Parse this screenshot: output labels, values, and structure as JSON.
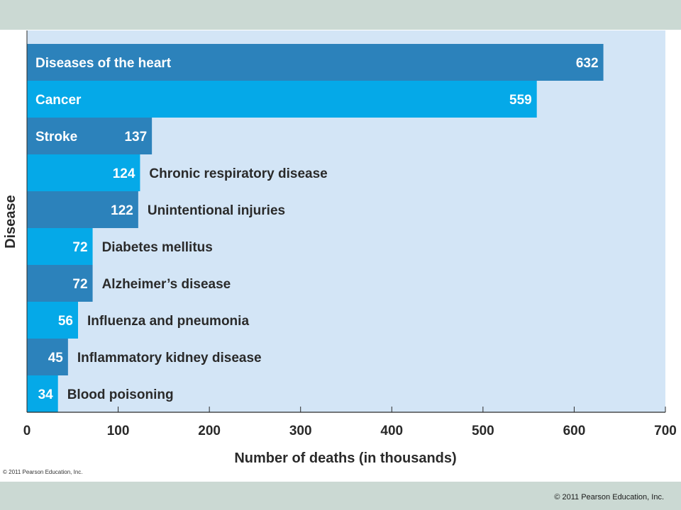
{
  "footer": {
    "copyright": "© 2011 Pearson Education, Inc."
  },
  "figure": {
    "small_copyright": "© 2011 Pearson Education, Inc."
  },
  "colors": {
    "plot_background": "#d3e5f6",
    "band": "#cbd9d3",
    "bar_dark": "#2c82bb",
    "bar_light": "#05a9e8",
    "text_dark": "#2a2a2a"
  },
  "chart_data": {
    "type": "bar",
    "orientation": "horizontal",
    "title": "",
    "xlabel": "Number of deaths (in thousands)",
    "ylabel": "Disease",
    "xlim": [
      0,
      700
    ],
    "xticks": [
      0,
      100,
      200,
      300,
      400,
      500,
      600,
      700
    ],
    "grid": false,
    "categories": [
      "Diseases of the heart",
      "Cancer",
      "Stroke",
      "Chronic respiratory disease",
      "Unintentional injuries",
      "Diabetes mellitus",
      "Alzheimer’s disease",
      "Influenza and pneumonia",
      "Inflammatory kidney disease",
      "Blood poisoning"
    ],
    "values": [
      632,
      559,
      137,
      124,
      122,
      72,
      72,
      56,
      45,
      34
    ]
  }
}
